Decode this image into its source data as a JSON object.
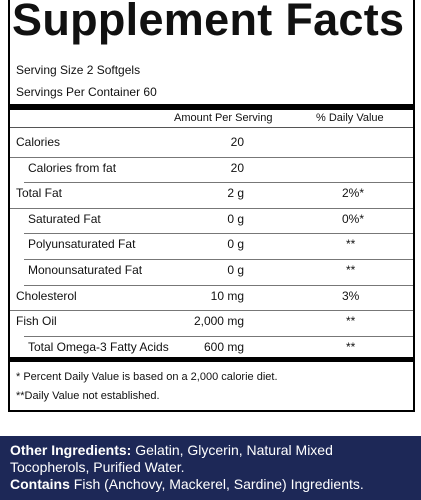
{
  "header": {
    "title": "Supplement Facts"
  },
  "serving": {
    "size": "Serving Size 2 Softgels",
    "per_container": "Servings Per Container 60"
  },
  "table": {
    "columns": [
      "Amount Per Serving",
      "% Daily Value"
    ],
    "rows": [
      {
        "name": "Calories",
        "amount": "20"
      },
      {
        "name": "Calories from fat",
        "amount": "20"
      },
      {
        "name": "Total Fat",
        "amount": "2 g",
        "daily_value": "2%*"
      },
      {
        "name": "Saturated Fat",
        "amount": "0 g",
        "daily_value": "0%*"
      },
      {
        "name": "Polyunsaturated Fat",
        "amount": "0 g",
        "daily_value": "**"
      },
      {
        "name": "Monounsaturated Fat",
        "amount": "0 g",
        "daily_value": "**"
      },
      {
        "name": "Cholesterol",
        "amount": "10 mg",
        "daily_value": "3%"
      },
      {
        "name": "Fish Oil",
        "amount": "2,000 mg",
        "daily_value": "**"
      },
      {
        "name": "Total Omega-3 Fatty Acids",
        "amount": "600 mg",
        "daily_value": "**"
      }
    ]
  },
  "footnotes": [
    "* Percent Daily Value is based on a 2,000 calorie diet.",
    "**Daily Value not established."
  ],
  "footer": {
    "other_label": "Other Ingredients:",
    "other_text": " Gelatin, Glycerin, Natural Mixed Tocopherols, Purified Water.",
    "contains_label": "Contains",
    "contains_text": " Fish (Anchovy, Mackerel, Sardine) Ingredients."
  }
}
